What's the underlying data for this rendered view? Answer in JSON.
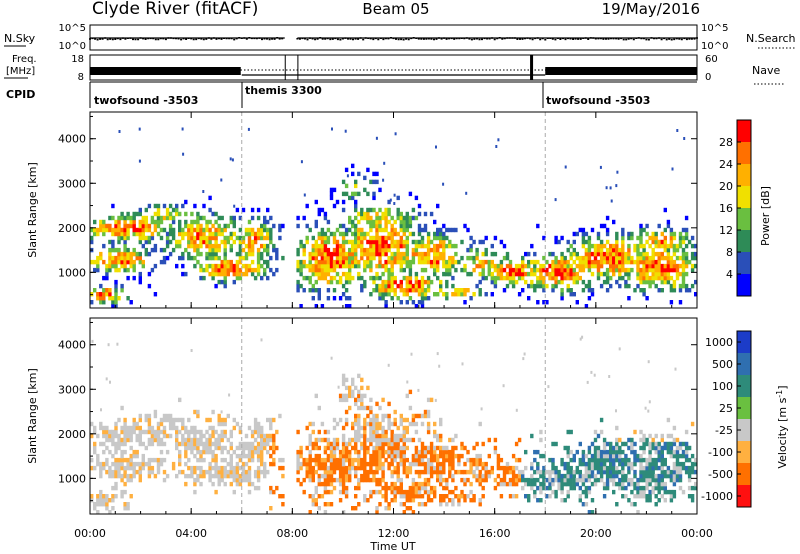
{
  "header": {
    "station": "Clyde River (fitACF)",
    "beam": "Beam 05",
    "date": "19/May/2016"
  },
  "strips": {
    "nsky_label": "N.Sky",
    "nsearch_label": "N.Search",
    "nsky_ticks": [
      "10^5",
      "10^0"
    ],
    "nsearch_ticks": [
      "10^5",
      "10^0"
    ],
    "freq_label_1": "Freq.",
    "freq_label_2": "[MHz]",
    "freq_ticks": [
      "18",
      "8"
    ],
    "nave_label": "Nave",
    "nave_ticks": [
      "60",
      "0"
    ],
    "cpid_label": "CPID",
    "cpid_segments": [
      {
        "name": "twofsound -3503",
        "start_hr": 0
      },
      {
        "name": "themis 3300",
        "start_hr": 6
      },
      {
        "name": "twofsound -3503",
        "start_hr": 18
      }
    ]
  },
  "chart_data": [
    {
      "type": "heatmap",
      "name": "power",
      "ylabel": "Slant Range [km]",
      "ylim": [
        200,
        4600
      ],
      "yticks": [
        "1000",
        "2000",
        "3000",
        "4000"
      ],
      "xlim": [
        0,
        24
      ],
      "data_gap_hours": [
        [
          7.7,
          8.2
        ]
      ],
      "colorbar": {
        "label": "Power [dB]",
        "ticks": [
          "4",
          "8",
          "12",
          "16",
          "20",
          "24",
          "28"
        ],
        "colors": [
          "#0000ff",
          "#2a4fb8",
          "#2e8b57",
          "#6abf40",
          "#f0e000",
          "#ffb000",
          "#ff7000",
          "#ff0000"
        ]
      }
    },
    {
      "type": "heatmap",
      "name": "velocity",
      "ylabel": "Slant Range [km]",
      "ylim": [
        200,
        4600
      ],
      "yticks": [
        "1000",
        "2000",
        "3000",
        "4000"
      ],
      "xlim": [
        0,
        24
      ],
      "data_gap_hours": [
        [
          7.7,
          8.2
        ]
      ],
      "colorbar": {
        "label_main": "Velocity [m s",
        "label_sup": "-1",
        "label_end": "]",
        "ticks": [
          "1000",
          "500",
          "100",
          "25",
          "-25",
          "-100",
          "-500",
          "-1000"
        ],
        "colors": [
          "#1c3cc8",
          "#2f6fb0",
          "#2e8b7a",
          "#6ac040",
          "#c8c8c8",
          "#ffb040",
          "#ff7000",
          "#ff1010"
        ]
      }
    }
  ],
  "xaxis": {
    "label": "Time UT",
    "ticks": [
      "00:00",
      "04:00",
      "08:00",
      "12:00",
      "16:00",
      "20:00",
      "00:00"
    ],
    "tick_hours": [
      0,
      4,
      8,
      12,
      16,
      20,
      24
    ]
  }
}
